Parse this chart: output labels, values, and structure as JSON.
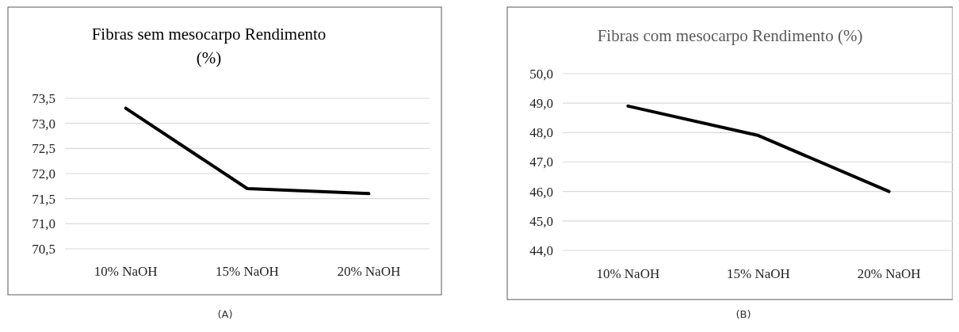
{
  "chart_data": [
    {
      "type": "line",
      "title": "Fibras sem mesocarpo Rendimento (%)",
      "categories": [
        "10% NaOH",
        "15% NaOH",
        "20% NaOH"
      ],
      "series": [
        {
          "color": "#000000",
          "values": [
            73.3,
            71.7,
            71.6
          ]
        }
      ],
      "ylim": [
        70.5,
        73.5
      ],
      "yticks": [
        {
          "value": 70.5,
          "label": "70,5"
        },
        {
          "value": 71,
          "label": "71,0"
        },
        {
          "value": 71.5,
          "label": "71,5"
        },
        {
          "value": 72,
          "label": "72,0"
        },
        {
          "value": 72.5,
          "label": "72,5"
        },
        {
          "value": 73,
          "label": "73,0"
        },
        {
          "value": 73.5,
          "label": "73,5"
        }
      ],
      "grid": "y",
      "marker": "none",
      "line_style": "solid",
      "annotations": [
        "(A)"
      ]
    },
    {
      "type": "line",
      "title": "Fibras com mesocarpo Rendimento (%)",
      "categories": [
        "10% NaOH",
        "15% NaOH",
        "20% NaOH"
      ],
      "series": [
        {
          "color": "#000000",
          "values": [
            48.9,
            47.9,
            46.0
          ]
        }
      ],
      "ylim": [
        44,
        50
      ],
      "yticks": [
        {
          "value": 44,
          "label": "44,0"
        },
        {
          "value": 45,
          "label": "45,0"
        },
        {
          "value": 46,
          "label": "46,0"
        },
        {
          "value": 47,
          "label": "47,0"
        },
        {
          "value": 48,
          "label": "48,0"
        },
        {
          "value": 49,
          "label": "49,0"
        },
        {
          "value": 50,
          "label": "50,0"
        }
      ],
      "grid": "y",
      "marker": "none",
      "line_style": "solid",
      "annotations": [
        "(B)"
      ]
    }
  ]
}
